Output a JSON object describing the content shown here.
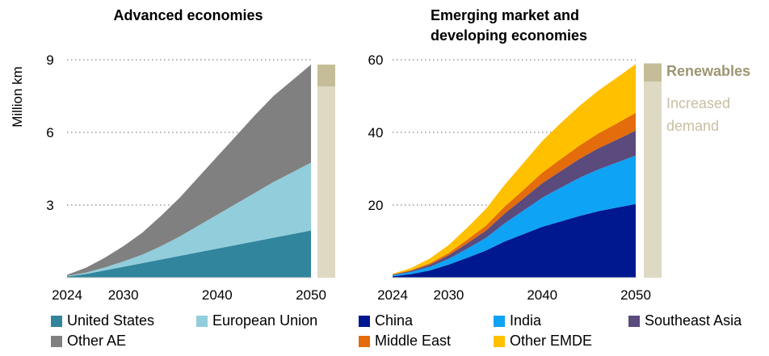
{
  "y_axis_label": "Million km",
  "colors": {
    "united_states": "#31859c",
    "european_union": "#92cddc",
    "other_ae": "#808080",
    "china": "#00188f",
    "india": "#0fa3f5",
    "southeast_asia": "#5b4a7c",
    "middle_east": "#e46c0a",
    "other_emde": "#ffc000",
    "renewables": "#c4bd97",
    "increased_demand": "#ddd9c3"
  },
  "chart_data": [
    {
      "type": "area",
      "stacked": true,
      "title": "Advanced economies",
      "ylabel": "Million km",
      "x": [
        2024,
        2026,
        2028,
        2030,
        2032,
        2034,
        2036,
        2038,
        2040,
        2042,
        2044,
        2046,
        2048,
        2050
      ],
      "xticks": [
        "2024",
        "2030",
        "2040",
        "2050"
      ],
      "yticks": [
        "3",
        "6",
        "9"
      ],
      "ylim": [
        0,
        9
      ],
      "grid": "horizontal dotted",
      "series": [
        {
          "name": "United States",
          "color_key": "united_states",
          "values": [
            0.05,
            0.15,
            0.3,
            0.45,
            0.6,
            0.75,
            0.9,
            1.05,
            1.2,
            1.35,
            1.5,
            1.65,
            1.8,
            1.95
          ]
        },
        {
          "name": "European Union",
          "color_key": "european_union",
          "values": [
            0.02,
            0.06,
            0.12,
            0.22,
            0.35,
            0.55,
            0.8,
            1.1,
            1.4,
            1.7,
            2.0,
            2.3,
            2.55,
            2.8
          ]
        },
        {
          "name": "Other AE",
          "color_key": "other_ae",
          "values": [
            0.05,
            0.2,
            0.4,
            0.63,
            0.9,
            1.25,
            1.6,
            2.0,
            2.4,
            2.8,
            3.2,
            3.55,
            3.8,
            4.05
          ]
        }
      ],
      "side_bar": [
        {
          "name": "Renewables",
          "value": 0.9
        },
        {
          "name": "Increased demand",
          "value": 7.9
        }
      ]
    },
    {
      "type": "area",
      "stacked": true,
      "title": "Emerging market and developing economies",
      "title_lines": [
        "Emerging market and",
        "developing economies"
      ],
      "x": [
        2024,
        2026,
        2028,
        2030,
        2032,
        2034,
        2036,
        2038,
        2040,
        2042,
        2044,
        2046,
        2048,
        2050
      ],
      "xticks": [
        "2024",
        "2030",
        "2040",
        "2050"
      ],
      "yticks": [
        "20",
        "40",
        "60"
      ],
      "ylim": [
        0,
        60
      ],
      "grid": "horizontal dotted",
      "series": [
        {
          "name": "China",
          "color_key": "china",
          "values": [
            0.4,
            1.0,
            2.0,
            3.6,
            5.5,
            7.5,
            10,
            12,
            14,
            15.5,
            17,
            18.3,
            19.3,
            20.3
          ]
        },
        {
          "name": "India",
          "color_key": "india",
          "values": [
            0.3,
            0.6,
            1.0,
            1.6,
            2.5,
            3.5,
            5.0,
            6.5,
            8.0,
            9.3,
            10.5,
            11.5,
            12.4,
            13.3
          ]
        },
        {
          "name": "Southeast Asia",
          "color_key": "southeast_asia",
          "values": [
            0.1,
            0.3,
            0.6,
            1.0,
            1.5,
            2.0,
            2.7,
            3.3,
            4.0,
            4.6,
            5.2,
            5.8,
            6.3,
            6.9
          ]
        },
        {
          "name": "Middle East",
          "color_key": "middle_east",
          "values": [
            0.1,
            0.2,
            0.4,
            0.6,
            1.0,
            1.4,
            1.9,
            2.4,
            2.9,
            3.3,
            3.7,
            4.1,
            4.5,
            4.9
          ]
        },
        {
          "name": "Other EMDE",
          "color_key": "other_emde",
          "values": [
            0.2,
            0.6,
            1.3,
            2.2,
            3.3,
            4.6,
            6.0,
            7.4,
            8.7,
            9.9,
            10.9,
            11.8,
            12.6,
            13.4
          ]
        }
      ],
      "side_bar": [
        {
          "name": "Renewables",
          "value": 5
        },
        {
          "name": "Increased demand",
          "value": 54
        }
      ]
    }
  ],
  "side_labels": {
    "renewables": "Renewables",
    "increased_demand_line1": "Increased",
    "increased_demand_line2": "demand"
  },
  "legend": [
    {
      "label": "United States",
      "color_key": "united_states"
    },
    {
      "label": "European Union",
      "color_key": "european_union"
    },
    {
      "label": "China",
      "color_key": "china"
    },
    {
      "label": "India",
      "color_key": "india"
    },
    {
      "label": "Southeast Asia",
      "color_key": "southeast_asia"
    },
    {
      "label": "Other AE",
      "color_key": "other_ae"
    },
    {
      "label": "Middle East",
      "color_key": "middle_east"
    },
    {
      "label": "Other EMDE",
      "color_key": "other_emde"
    }
  ]
}
